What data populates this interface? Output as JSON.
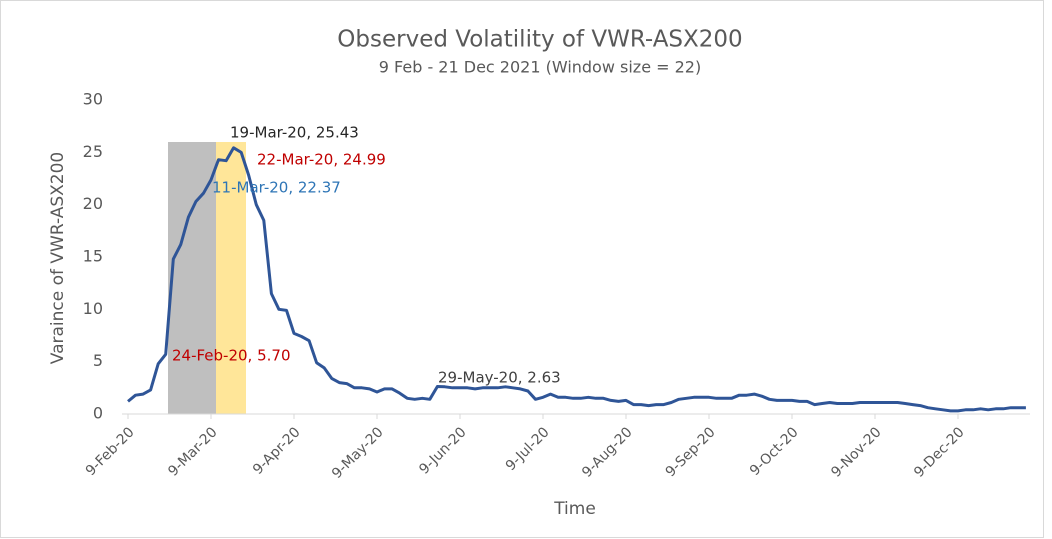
{
  "chart_data": {
    "type": "line",
    "title": "Observed Volatility of VWR-ASX200",
    "subtitle": "9 Feb - 21 Dec 2021 (Window size = 22)",
    "x_label": "Time",
    "y_label": "Varaince of VWR-ASX200",
    "ylim": [
      0,
      30
    ],
    "yticks": [
      0,
      5,
      10,
      15,
      20,
      25,
      30
    ],
    "grid": false,
    "categories": [
      "9-Feb-20",
      null,
      null,
      null,
      null,
      null,
      null,
      null,
      null,
      null,
      null,
      "9-Mar-20",
      null,
      null,
      null,
      null,
      null,
      null,
      null,
      null,
      null,
      null,
      "9-Apr-20",
      null,
      null,
      null,
      null,
      null,
      null,
      null,
      null,
      null,
      null,
      "9-May-20",
      null,
      null,
      null,
      null,
      null,
      null,
      null,
      null,
      null,
      null,
      "9-Jun-20",
      null,
      null,
      null,
      null,
      null,
      null,
      null,
      null,
      null,
      null,
      "9-Jul-20",
      null,
      null,
      null,
      null,
      null,
      null,
      null,
      null,
      null,
      null,
      "9-Aug-20",
      null,
      null,
      null,
      null,
      null,
      null,
      null,
      null,
      null,
      null,
      "9-Sep-20",
      null,
      null,
      null,
      null,
      null,
      null,
      null,
      null,
      null,
      null,
      "9-Oct-20",
      null,
      null,
      null,
      null,
      null,
      null,
      null,
      null,
      null,
      null,
      "9-Nov-20",
      null,
      null,
      null,
      null,
      null,
      null,
      null,
      null,
      null,
      null,
      "9-Dec-20",
      null,
      null,
      null,
      null,
      null,
      null,
      null,
      null,
      null
    ],
    "series": [
      {
        "name": "VWR-ASX200",
        "color": "#2f5597",
        "values": [
          1.2,
          1.8,
          1.9,
          2.3,
          4.8,
          5.7,
          14.8,
          16.2,
          18.8,
          20.3,
          21.1,
          22.37,
          24.3,
          24.2,
          25.43,
          24.99,
          22.8,
          20.0,
          18.5,
          11.5,
          10.0,
          9.9,
          7.7,
          7.4,
          7.0,
          4.9,
          4.4,
          3.4,
          3.0,
          2.9,
          2.5,
          2.5,
          2.4,
          2.1,
          2.4,
          2.4,
          2.0,
          1.5,
          1.4,
          1.5,
          1.4,
          2.63,
          2.6,
          2.5,
          2.5,
          2.5,
          2.4,
          2.5,
          2.5,
          2.5,
          2.6,
          2.5,
          2.4,
          2.2,
          1.4,
          1.6,
          1.9,
          1.6,
          1.6,
          1.5,
          1.5,
          1.6,
          1.5,
          1.5,
          1.3,
          1.2,
          1.3,
          0.9,
          0.9,
          0.8,
          0.9,
          0.9,
          1.1,
          1.4,
          1.5,
          1.6,
          1.6,
          1.6,
          1.5,
          1.5,
          1.5,
          1.8,
          1.8,
          1.9,
          1.7,
          1.4,
          1.3,
          1.3,
          1.3,
          1.2,
          1.2,
          0.9,
          1.0,
          1.1,
          1.0,
          1.0,
          1.0,
          1.1,
          1.1,
          1.1,
          1.1,
          1.1,
          1.1,
          1.0,
          0.9,
          0.8,
          0.6,
          0.5,
          0.4,
          0.3,
          0.3,
          0.4,
          0.4,
          0.5,
          0.4,
          0.5,
          0.5,
          0.6,
          0.6,
          0.6
        ]
      }
    ],
    "annotations": [
      {
        "text": "19-Mar-20, 25.43",
        "color": "#262626"
      },
      {
        "text": "22-Mar-20, 24.99",
        "color": "#c00000"
      },
      {
        "text": "11-Mar-20, 22.37",
        "color": "#2e75b6"
      },
      {
        "text": "24-Feb-20, 5.70",
        "color": "#c00000"
      },
      {
        "text": "29-May-20, 2.63",
        "color": "#404040"
      }
    ]
  }
}
